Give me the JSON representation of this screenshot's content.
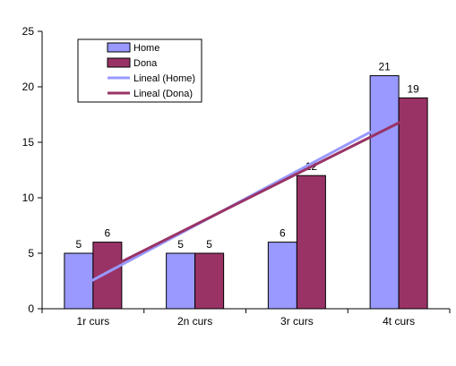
{
  "chart_data": {
    "type": "bar",
    "categories": [
      "1r curs",
      "2n curs",
      "3r curs",
      "4t curs"
    ],
    "series": [
      {
        "name": "Home",
        "values": [
          5,
          5,
          6,
          21
        ],
        "color": "#9999FF",
        "data_labels": [
          "5",
          "5",
          "6",
          "21"
        ]
      },
      {
        "name": "Dona",
        "values": [
          6,
          5,
          12,
          19
        ],
        "color": "#993366",
        "data_labels": [
          "6",
          "5",
          "12",
          "19"
        ]
      }
    ],
    "trendlines": [
      {
        "name": "Lineal (Home)",
        "series": "Home",
        "type": "linear",
        "color": "#9999FF"
      },
      {
        "name": "Lineal (Dona)",
        "series": "Dona",
        "type": "linear",
        "color": "#993366"
      }
    ],
    "ylim": [
      0,
      25
    ],
    "yticks": [
      0,
      5,
      10,
      15,
      20,
      25
    ],
    "grid": false,
    "legend_position": "top-left inside plot",
    "title": "",
    "xlabel": "",
    "ylabel": ""
  }
}
